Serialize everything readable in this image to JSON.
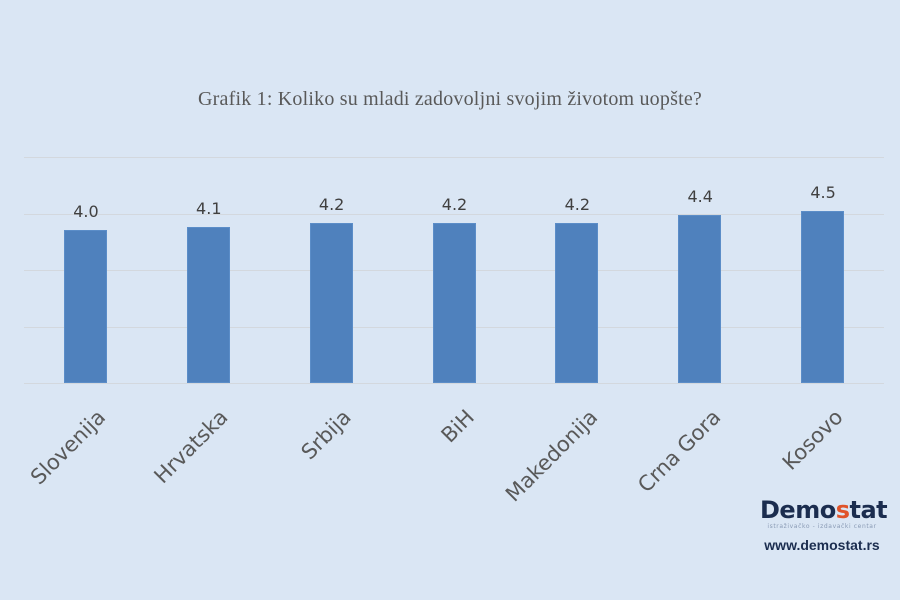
{
  "chart_data": {
    "type": "bar",
    "title": "Grafik 1: Koliko su mladi zadovoljni svojim životom uopšte?",
    "categories": [
      "Slovenija",
      "Hrvatska",
      "Srbija",
      "BiH",
      "Makedonija",
      "Crna Gora",
      "Kosovo"
    ],
    "values": [
      4.0,
      4.1,
      4.2,
      4.2,
      4.2,
      4.4,
      4.5
    ],
    "value_labels": [
      "4.0",
      "4.1",
      "4.2",
      "4.2",
      "4.2",
      "4.4",
      "4.5"
    ],
    "xlabel": "",
    "ylabel": "",
    "ylim": [
      0,
      5
    ],
    "y_axis_visible": false,
    "grid": true,
    "gridlines": 5,
    "legend": "none",
    "bar_color": "#4f81bd",
    "background_color": "#dae6f4"
  },
  "logo": {
    "name_pre": "Demo",
    "name_accent": "s",
    "name_post": "tat",
    "tagline": "istraživačko - izdavački centar",
    "url": "www.demostat.rs",
    "accent_color": "#e0542b"
  }
}
